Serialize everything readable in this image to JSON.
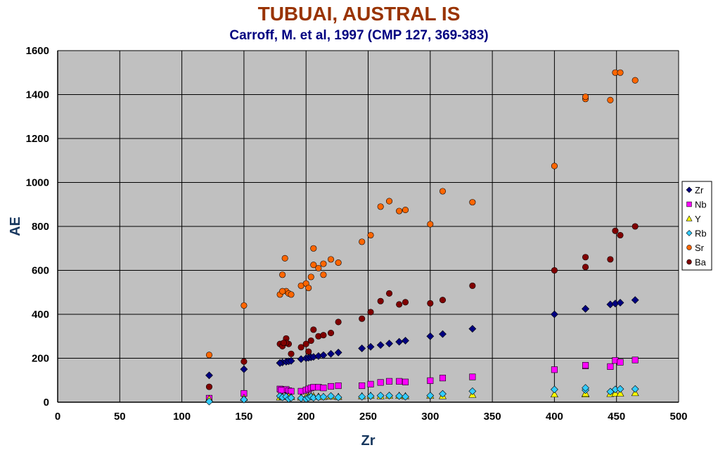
{
  "chart_data": {
    "type": "scatter",
    "title": "TUBUAI, AUSTRAL IS",
    "subtitle": "Carroff, M. et al, 1997 (CMP 127, 369-383)",
    "xlabel": "Zr",
    "ylabel": "AE",
    "xlim": [
      0,
      500
    ],
    "ylim": [
      0,
      1600
    ],
    "xticks": [
      0,
      50,
      100,
      150,
      200,
      250,
      300,
      350,
      400,
      450,
      500
    ],
    "yticks": [
      0,
      200,
      400,
      600,
      800,
      1000,
      1200,
      1400,
      1600
    ],
    "grid": true,
    "legend_position": "right",
    "x": [
      122,
      150,
      179,
      181,
      184,
      186,
      188,
      196,
      200,
      202,
      204,
      206,
      210,
      214,
      220,
      226,
      245,
      252,
      260,
      267,
      275,
      280,
      300,
      310,
      334,
      400,
      425,
      425,
      445,
      449,
      453,
      465
    ],
    "series": [
      {
        "name": "Zr",
        "marker": "diamond",
        "color": "#000080",
        "values": [
          122,
          150,
          179,
          181,
          184,
          186,
          188,
          196,
          200,
          202,
          204,
          206,
          210,
          214,
          220,
          226,
          245,
          252,
          260,
          267,
          275,
          280,
          300,
          310,
          334,
          400,
          425,
          425,
          445,
          449,
          453,
          465
        ]
      },
      {
        "name": "Nb",
        "marker": "square",
        "color": "#ff00ff",
        "values": [
          18,
          40,
          60,
          55,
          58,
          52,
          50,
          50,
          55,
          60,
          65,
          68,
          68,
          65,
          72,
          75,
          75,
          82,
          90,
          95,
          95,
          92,
          98,
          110,
          115,
          148,
          165,
          168,
          162,
          190,
          182,
          192
        ]
      },
      {
        "name": "Y",
        "marker": "triangle",
        "color": "#ffff00",
        "values": [
          15,
          20,
          22,
          25,
          28,
          26,
          24,
          22,
          25,
          27,
          28,
          28,
          26,
          25,
          27,
          25,
          28,
          30,
          28,
          30,
          30,
          28,
          30,
          28,
          34,
          36,
          36,
          40,
          38,
          40,
          40,
          42
        ]
      },
      {
        "name": "Rb",
        "marker": "diamond",
        "color": "#33ccff",
        "values": [
          3,
          12,
          28,
          22,
          25,
          15,
          20,
          18,
          15,
          20,
          25,
          20,
          22,
          24,
          28,
          22,
          25,
          28,
          30,
          30,
          28,
          25,
          30,
          38,
          50,
          58,
          55,
          65,
          48,
          58,
          60,
          60
        ]
      },
      {
        "name": "Sr",
        "marker": "circle",
        "color": "#ff6600",
        "values": [
          215,
          440,
          490,
          580,
          505,
          495,
          490,
          530,
          540,
          520,
          570,
          700,
          610,
          580,
          650,
          635,
          730,
          760,
          890,
          915,
          870,
          875,
          810,
          960,
          910,
          1075,
          1380,
          1390,
          1375,
          1500,
          1500,
          1465
        ]
      },
      {
        "name": "Ba",
        "marker": "circle",
        "color": "#800000",
        "values": [
          70,
          185,
          265,
          255,
          290,
          265,
          220,
          250,
          265,
          230,
          280,
          330,
          300,
          305,
          315,
          365,
          380,
          410,
          460,
          495,
          445,
          455,
          450,
          465,
          530,
          600,
          660,
          615,
          650,
          780,
          760,
          800
        ]
      }
    ],
    "extra_points": [
      {
        "series": "Sr",
        "x": 183,
        "y": 655
      },
      {
        "series": "Sr",
        "x": 206,
        "y": 625
      },
      {
        "series": "Sr",
        "x": 214,
        "y": 630
      },
      {
        "series": "Sr",
        "x": 181,
        "y": 505
      },
      {
        "series": "Ba",
        "x": 184,
        "y": 270
      },
      {
        "series": "Ba",
        "x": 182,
        "y": 270
      },
      {
        "series": "Zr",
        "x": 179,
        "y": 178
      },
      {
        "series": "Nb",
        "x": 180,
        "y": 55
      }
    ]
  }
}
